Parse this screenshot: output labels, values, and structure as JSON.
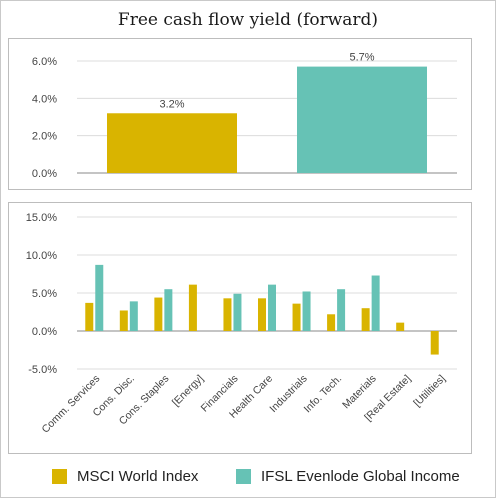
{
  "title": "Free cash flow yield (forward)",
  "colors": {
    "msci": "#d9b400",
    "ifsl": "#66c2b5",
    "grid": "#dcdcdc",
    "axis": "#888888"
  },
  "legend": {
    "msci": "MSCI World Index",
    "ifsl": "IFSL Evenlode Global Income"
  },
  "chart_data": [
    {
      "type": "bar",
      "title": "Free cash flow yield (forward)",
      "categories": [
        "MSCI World Index",
        "IFSL Evenlode Global Income"
      ],
      "values": [
        3.2,
        5.7
      ],
      "value_labels": [
        "3.2%",
        "5.7%"
      ],
      "ylim": [
        0,
        6
      ],
      "yticks": [
        0,
        2,
        4,
        6
      ],
      "ytick_labels": [
        "0.0%",
        "2.0%",
        "4.0%",
        "6.0%"
      ],
      "grid": true
    },
    {
      "type": "bar",
      "categories": [
        "Comm. Services",
        "Cons. Disc.",
        "Cons. Staples",
        "[Energy]",
        "Financials",
        "Health Care",
        "Industrials",
        "Info. Tech.",
        "Materials",
        "[Real Estate]",
        "[Utilities]"
      ],
      "series": [
        {
          "name": "MSCI World Index",
          "values": [
            3.7,
            2.7,
            4.4,
            6.1,
            4.3,
            4.3,
            3.6,
            2.2,
            3.0,
            1.1,
            -3.1
          ]
        },
        {
          "name": "IFSL Evenlode Global Income",
          "values": [
            8.7,
            3.9,
            5.5,
            null,
            4.9,
            6.1,
            5.2,
            5.5,
            7.3,
            null,
            null
          ]
        }
      ],
      "ylim": [
        -5,
        15
      ],
      "yticks": [
        -5,
        0,
        5,
        10,
        15
      ],
      "ytick_labels": [
        "-5.0%",
        "0.0%",
        "5.0%",
        "10.0%",
        "15.0%"
      ],
      "grid": true,
      "legend_position": "bottom"
    }
  ]
}
